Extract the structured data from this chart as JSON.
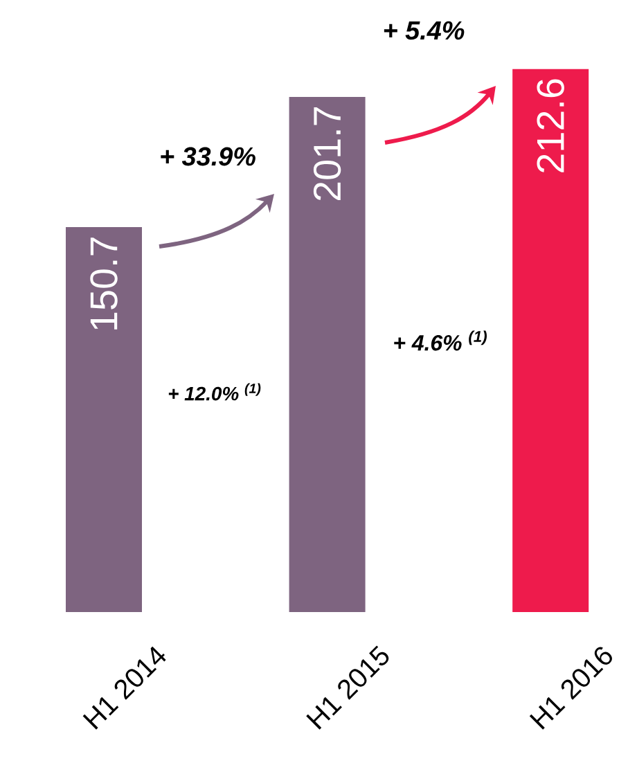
{
  "chart_data": {
    "type": "bar",
    "categories": [
      "H1 2014",
      "H1 2015",
      "H1 2016"
    ],
    "values": [
      150.7,
      201.7,
      212.6
    ],
    "colors": [
      "#7e6480",
      "#7e6480",
      "#ee1b4c"
    ],
    "data_labels": true,
    "annotations": [
      "+ 33.9%",
      "+ 12.0% $^{(1)}$",
      "+ 5.4%",
      "+ 4.6% $^{(1)}$"
    ]
  }
}
